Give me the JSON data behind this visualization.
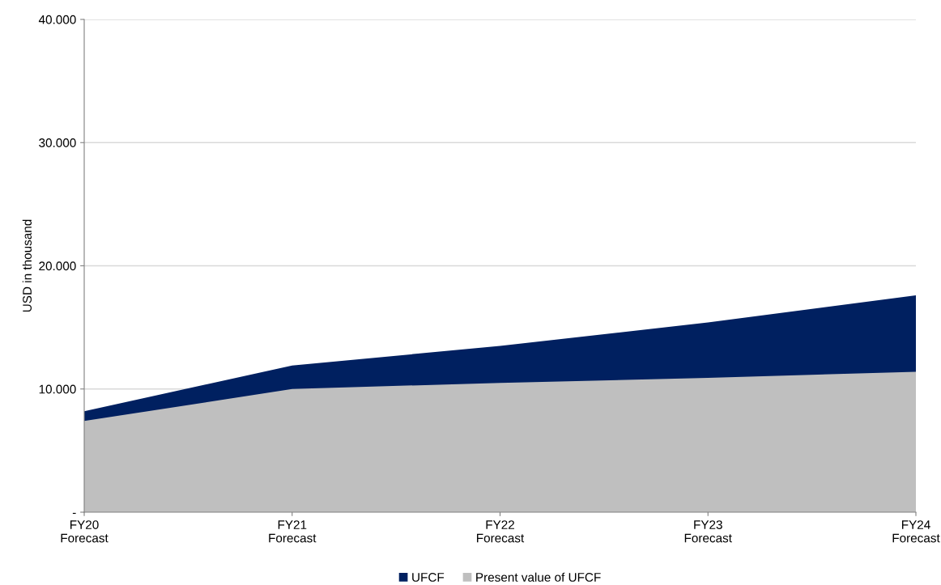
{
  "chart_data": {
    "type": "area",
    "ylabel": "USD in thousand",
    "categories": [
      "FY20\nForecast",
      "FY21\nForecast",
      "FY22\nForecast",
      "FY23\nForecast",
      "FY24\nForecast"
    ],
    "series": [
      {
        "name": "UFCF",
        "color": "#002060",
        "values": [
          8200,
          11900,
          13500,
          15400,
          17600
        ]
      },
      {
        "name": "Present value of UFCF",
        "color": "#bfbfbf",
        "values": [
          7400,
          10000,
          10500,
          10900,
          11400
        ]
      }
    ],
    "ylim": [
      0,
      40000
    ],
    "yticks": [
      {
        "value": 0,
        "label": "-"
      },
      {
        "value": 10000,
        "label": "10.000"
      },
      {
        "value": 20000,
        "label": "20.000"
      },
      {
        "value": 30000,
        "label": "30.000"
      },
      {
        "value": 40000,
        "label": "40.000"
      }
    ],
    "grid": "y",
    "legend": "bottom"
  }
}
